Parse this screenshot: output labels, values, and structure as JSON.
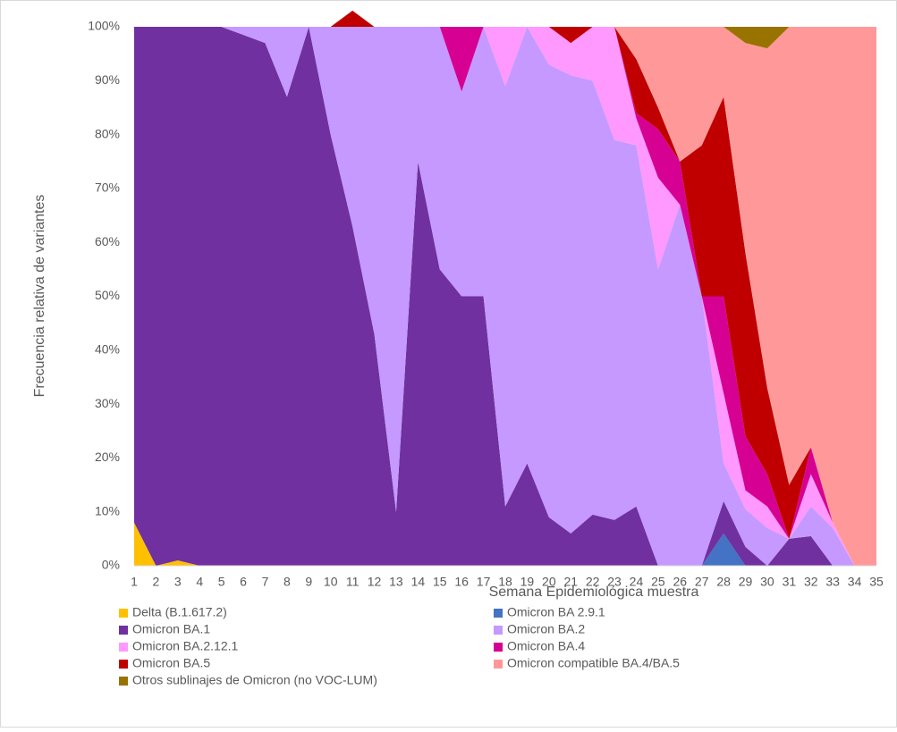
{
  "chart_data": {
    "type": "stacked_area",
    "x_label": "Semana Epidemiológica muestra",
    "y_label": "Frecuencia relativa de variantes",
    "categories": [
      "1",
      "2",
      "3",
      "4",
      "5",
      "6",
      "7",
      "8",
      "9",
      "10",
      "11",
      "12",
      "13",
      "14",
      "15",
      "16",
      "17",
      "18",
      "19",
      "20",
      "21",
      "22",
      "23",
      "24",
      "25",
      "26",
      "27",
      "28",
      "29",
      "30",
      "31",
      "32",
      "33",
      "34",
      "35"
    ],
    "ylim": [
      0,
      100
    ],
    "yticks": [
      {
        "value": 0,
        "label": "0%"
      },
      {
        "value": 10,
        "label": "10%"
      },
      {
        "value": 20,
        "label": "20%"
      },
      {
        "value": 30,
        "label": "30%"
      },
      {
        "value": 40,
        "label": "40%"
      },
      {
        "value": 50,
        "label": "50%"
      },
      {
        "value": 60,
        "label": "60%"
      },
      {
        "value": 70,
        "label": "70%"
      },
      {
        "value": 80,
        "label": "80%"
      },
      {
        "value": 90,
        "label": "90%"
      },
      {
        "value": 100,
        "label": "100%"
      }
    ],
    "series": [
      {
        "name": "Delta (B.1.617.2)",
        "color": "#ffc000",
        "values": [
          8,
          0,
          1,
          0,
          0,
          0,
          0,
          0,
          0,
          0,
          0,
          0,
          0,
          0,
          0,
          0,
          0,
          0,
          0,
          0,
          0,
          0,
          0,
          0,
          0,
          0,
          0,
          0,
          0,
          0,
          0,
          0,
          0,
          0,
          0
        ]
      },
      {
        "name": "Omicron BA 2.9.1",
        "color": "#4472c4",
        "values": [
          0,
          0,
          0,
          0,
          0,
          0,
          0,
          0,
          0,
          0,
          0,
          0,
          0,
          0,
          0,
          0,
          0,
          0,
          0,
          0,
          0,
          0,
          0,
          0,
          0,
          0,
          0,
          6,
          0,
          0,
          0,
          0,
          0,
          0,
          0
        ]
      },
      {
        "name": "Omicron BA.1",
        "color": "#7030a0",
        "values": [
          92,
          100,
          99,
          100,
          100,
          98.5,
          97,
          87,
          100,
          80,
          63,
          43,
          10,
          75,
          55,
          50,
          50,
          11,
          19,
          9,
          6,
          9.5,
          8.5,
          11,
          0,
          0,
          0,
          6,
          3.5,
          0,
          5,
          5.5,
          0,
          0,
          0
        ]
      },
      {
        "name": "Omicron BA.2",
        "color": "#c599ff",
        "values": [
          0,
          0,
          0,
          0,
          0,
          1.5,
          3,
          13,
          0,
          20,
          37,
          57,
          90,
          25,
          45,
          38,
          50,
          78,
          81,
          84,
          85,
          80.5,
          70.5,
          67,
          55,
          67,
          50,
          7,
          7,
          7,
          0,
          5.5,
          7,
          0,
          0
        ]
      },
      {
        "name": "Omicron BA.2.12.1",
        "color": "#ff99ff",
        "values": [
          0,
          0,
          0,
          0,
          0,
          0,
          0,
          0,
          0,
          0,
          0,
          0,
          0,
          0,
          0,
          0,
          0,
          11,
          0,
          7,
          6,
          10,
          21,
          5,
          17,
          0,
          0,
          13,
          3.5,
          4,
          0,
          6,
          1,
          0,
          0
        ]
      },
      {
        "name": "Omicron BA.4",
        "color": "#d60093",
        "values": [
          0,
          0,
          0,
          0,
          0,
          0,
          0,
          0,
          0,
          0,
          0,
          0,
          0,
          0,
          0,
          12,
          0,
          0,
          0,
          0,
          0,
          0,
          0,
          1,
          9,
          8,
          0,
          18,
          10,
          6,
          0,
          5,
          0,
          0,
          0
        ]
      },
      {
        "name": "Omicron BA.5",
        "color": "#c00000",
        "values": [
          0,
          0,
          0,
          0,
          0,
          0,
          0,
          0,
          0,
          0,
          3,
          0,
          0,
          0,
          0,
          0,
          0,
          0,
          0,
          0,
          3,
          0,
          0,
          10,
          4,
          0,
          28,
          37,
          34,
          16,
          10,
          0,
          0,
          0,
          0
        ]
      },
      {
        "name": "Omicron compatible BA.4/BA.5",
        "color": "#ff9999",
        "values": [
          0,
          0,
          0,
          0,
          0,
          0,
          0,
          0,
          0,
          0,
          0,
          0,
          0,
          0,
          0,
          0,
          0,
          0,
          0,
          0,
          0,
          0,
          0,
          6,
          15,
          25,
          22,
          13,
          39,
          63,
          85,
          78,
          92,
          100,
          100
        ]
      },
      {
        "name": "Otros sublinajes de Omicron (no VOC-LUM)",
        "color": "#997300",
        "values": [
          0,
          0,
          0,
          0,
          0,
          0,
          0,
          0,
          0,
          0,
          0,
          0,
          0,
          0,
          0,
          0,
          0,
          0,
          0,
          0,
          0,
          0,
          0,
          0,
          0,
          0,
          0,
          0,
          3,
          4,
          0,
          0,
          0,
          0,
          0
        ]
      }
    ]
  }
}
